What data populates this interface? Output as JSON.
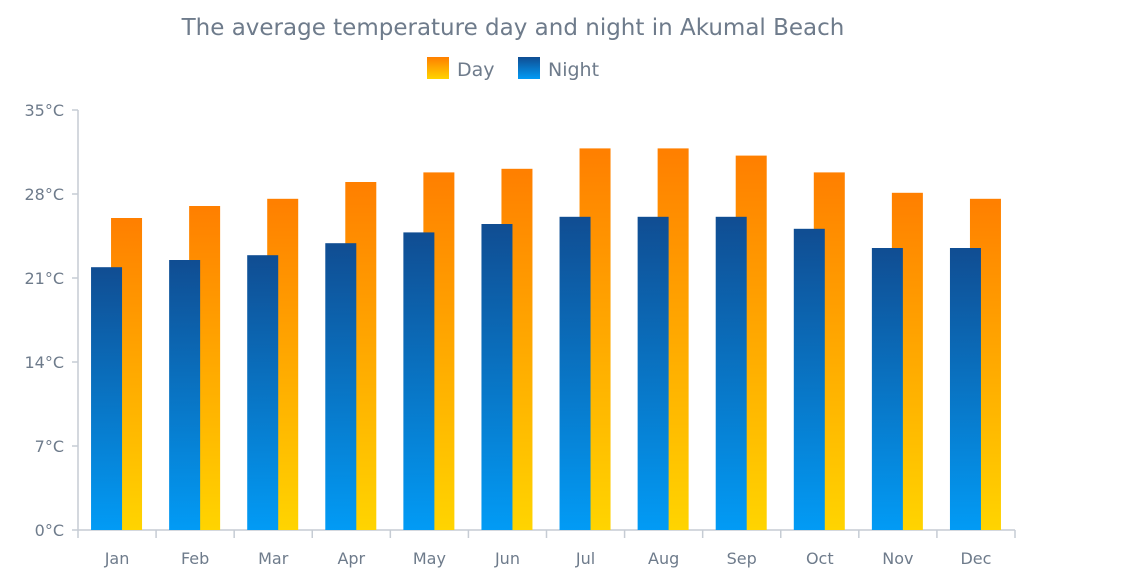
{
  "chart_data": {
    "type": "bar",
    "title": "The average temperature day and night in Akumal Beach",
    "xlabel": "",
    "ylabel": "",
    "ylim": [
      0,
      35
    ],
    "yticks": [
      "0°C",
      "7°C",
      "14°C",
      "21°C",
      "28°C",
      "35°C"
    ],
    "ytick_values": [
      0,
      7,
      14,
      21,
      28,
      35
    ],
    "categories": [
      "Jan",
      "Feb",
      "Mar",
      "Apr",
      "May",
      "Jun",
      "Jul",
      "Aug",
      "Sep",
      "Oct",
      "Nov",
      "Dec"
    ],
    "series": [
      {
        "name": "Day",
        "values": [
          26,
          27,
          27.6,
          29,
          29.8,
          30.1,
          31.8,
          31.8,
          31.2,
          29.8,
          28.1,
          27.6
        ]
      },
      {
        "name": "Night",
        "values": [
          21.9,
          22.5,
          22.9,
          23.9,
          24.8,
          25.5,
          26.1,
          26.1,
          26.1,
          25.1,
          23.5,
          23.5
        ]
      }
    ],
    "legend_position": "top-center",
    "grid": false,
    "colors": {
      "day_top": "#ff7f00",
      "day_bottom": "#ffd400",
      "night_top": "#104d92",
      "night_bottom": "#029bf5",
      "axis": "#c6ccd4",
      "text": "#6e7b8b"
    }
  }
}
